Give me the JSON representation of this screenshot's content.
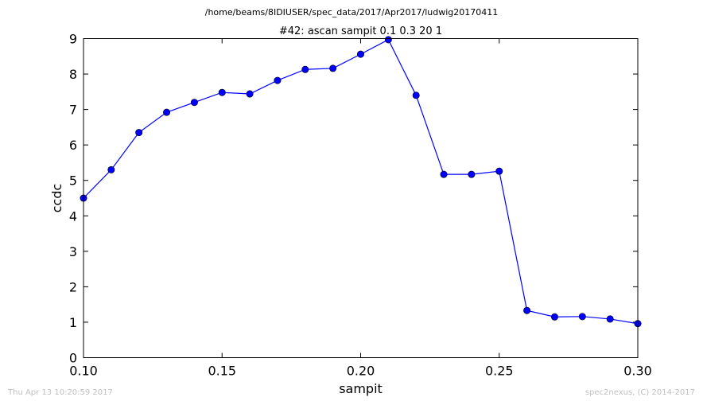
{
  "suptitle": "/home/beams/8IDIUSER/spec_data/2017/Apr2017/ludwig20170411",
  "footer": {
    "timestamp": "Thu Apr 13 10:20:59 2017",
    "credit": "spec2nexus, (C) 2014-2017"
  },
  "colors": {
    "series": "#0000ff",
    "marker": "#0000ff"
  },
  "chart_data": {
    "type": "line",
    "title": "#42: ascan  sampit 0.1 0.3  20 1",
    "xlabel": "sampit",
    "ylabel": "ccdc",
    "xlim": [
      0.1,
      0.3
    ],
    "ylim": [
      0,
      9
    ],
    "x_ticks": [
      "0.10",
      "0.15",
      "0.20",
      "0.25",
      "0.30"
    ],
    "y_ticks": [
      "0",
      "1",
      "2",
      "3",
      "4",
      "5",
      "6",
      "7",
      "8",
      "9"
    ],
    "grid": false,
    "legend": "none",
    "series": [
      {
        "x": [
          0.1,
          0.11,
          0.12,
          0.13,
          0.14,
          0.15,
          0.16,
          0.17,
          0.18,
          0.19,
          0.2,
          0.21,
          0.22,
          0.23,
          0.24,
          0.25,
          0.26,
          0.27,
          0.28,
          0.29,
          0.3
        ],
        "y": [
          4.5,
          5.3,
          6.35,
          6.92,
          7.2,
          7.48,
          7.44,
          7.82,
          8.13,
          8.16,
          8.56,
          8.97,
          7.4,
          5.17,
          5.17,
          5.26,
          1.33,
          1.15,
          1.16,
          1.09,
          0.96
        ]
      }
    ]
  }
}
